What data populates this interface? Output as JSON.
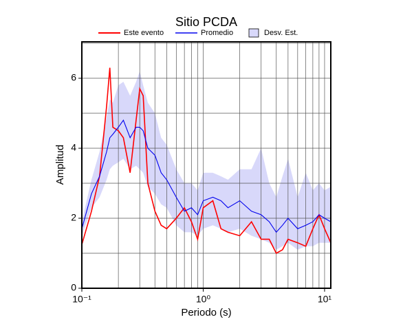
{
  "chart_data": {
    "type": "line",
    "title": "Sitio PCDA",
    "x_label": "Periodo (s)",
    "y_label": "Amplitud",
    "xlog": true,
    "x": [
      0.1,
      0.12,
      0.14,
      0.16,
      0.17,
      0.18,
      0.2,
      0.22,
      0.25,
      0.28,
      0.3,
      0.32,
      0.35,
      0.4,
      0.45,
      0.5,
      0.6,
      0.7,
      0.8,
      0.9,
      1.0,
      1.2,
      1.4,
      1.6,
      2,
      2.5,
      3,
      3.5,
      4,
      4.5,
      5,
      6,
      7,
      8,
      9,
      10,
      11.25
    ],
    "series": [
      {
        "name": "Este evento",
        "color": "#ff0000",
        "values": [
          1.25,
          2.2,
          3.2,
          5.2,
          6.3,
          4.6,
          4.5,
          4.3,
          3.3,
          4.8,
          5.7,
          5.5,
          3.0,
          2.2,
          1.8,
          1.7,
          2.0,
          2.3,
          1.9,
          1.4,
          2.3,
          2.5,
          1.7,
          1.6,
          1.5,
          1.9,
          1.4,
          1.4,
          1.0,
          1.1,
          1.4,
          1.3,
          1.2,
          1.7,
          2.1,
          1.7,
          1.3
        ]
      },
      {
        "name": "Promedio",
        "color": "#0000ee",
        "values": [
          1.7,
          2.7,
          3.2,
          3.9,
          4.3,
          4.4,
          4.6,
          4.8,
          4.3,
          4.6,
          4.6,
          4.5,
          4.0,
          3.8,
          3.3,
          3.1,
          2.6,
          2.2,
          2.3,
          2.1,
          2.5,
          2.6,
          2.5,
          2.3,
          2.5,
          2.2,
          2.1,
          1.9,
          1.6,
          1.8,
          2.0,
          1.7,
          1.8,
          1.9,
          2.1,
          2.0,
          1.9
        ]
      }
    ],
    "band": {
      "name": "Desv. Est.",
      "color": "#d8d8fa",
      "upper": [
        1.9,
        3.1,
        3.9,
        4.9,
        5.4,
        5.3,
        5.8,
        5.9,
        5.5,
        5.9,
        6.2,
        5.8,
        5.3,
        5.0,
        4.3,
        4.1,
        3.4,
        3.0,
        3.0,
        2.8,
        3.3,
        3.3,
        3.2,
        3.1,
        3.4,
        3.4,
        4.0,
        3.0,
        2.6,
        3.2,
        3.7,
        2.6,
        3.3,
        2.8,
        3.0,
        2.8,
        2.9
      ],
      "lower": [
        1.5,
        2.3,
        2.6,
        3.1,
        3.4,
        3.5,
        3.6,
        3.7,
        3.4,
        3.5,
        3.4,
        3.3,
        2.9,
        2.7,
        2.4,
        2.3,
        1.8,
        1.6,
        1.6,
        1.5,
        1.7,
        1.8,
        1.7,
        1.6,
        1.7,
        1.5,
        1.4,
        1.3,
        1.1,
        1.2,
        1.3,
        1.1,
        1.2,
        1.2,
        1.3,
        1.3,
        1.3
      ]
    },
    "xlim": [
      0.1,
      11.25
    ],
    "ylim": [
      0,
      7.04
    ],
    "xticks": [
      {
        "value": 0.1,
        "label": "10⁻¹"
      },
      {
        "value": 1,
        "label": "10⁰"
      },
      {
        "value": 10,
        "label": "10¹"
      }
    ],
    "xgrid": [
      0.2,
      0.3,
      0.4,
      0.5,
      0.6,
      0.7,
      0.8,
      0.9,
      2,
      3,
      4,
      5,
      6,
      7,
      8,
      9
    ],
    "yticks": [
      0,
      2,
      4,
      6
    ],
    "ygrid": [
      1,
      3,
      5,
      7
    ],
    "grid": true
  }
}
